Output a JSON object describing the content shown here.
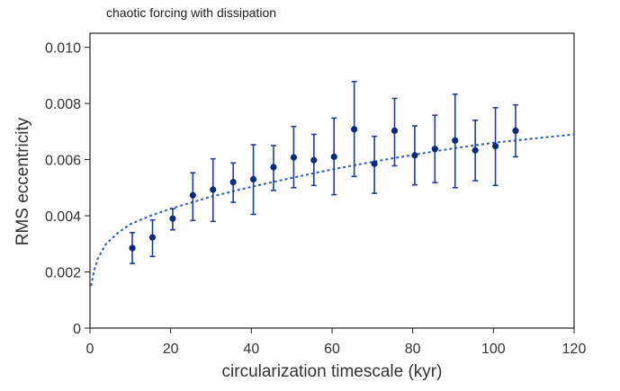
{
  "chart_data": {
    "type": "scatter",
    "title": "chaotic forcing with dissipation",
    "xlabel": "circularization timescale (kyr)",
    "ylabel": "RMS eccentricity",
    "xlim": [
      0,
      120
    ],
    "ylim": [
      0,
      0.0105
    ],
    "x_ticks": [
      "0",
      "20",
      "40",
      "60",
      "80",
      "100",
      "120"
    ],
    "y_ticks": [
      "0",
      "0.002",
      "0.004",
      "0.006",
      "0.008",
      "0.010"
    ],
    "grid": false,
    "legend": "none",
    "series": [
      {
        "kind": "points_with_error_bars",
        "color": "#1f3f94",
        "point_color": "#0b2a7a",
        "points": [
          {
            "x": 10.5,
            "y": 0.00285,
            "err_low": 0.0023,
            "err_high": 0.0034
          },
          {
            "x": 15.5,
            "y": 0.00323,
            "err_low": 0.00255,
            "err_high": 0.00385
          },
          {
            "x": 20.5,
            "y": 0.0039,
            "err_low": 0.0035,
            "err_high": 0.00425
          },
          {
            "x": 25.5,
            "y": 0.00473,
            "err_low": 0.00383,
            "err_high": 0.00553
          },
          {
            "x": 30.5,
            "y": 0.00493,
            "err_low": 0.0038,
            "err_high": 0.00603
          },
          {
            "x": 35.5,
            "y": 0.0052,
            "err_low": 0.00448,
            "err_high": 0.00588
          },
          {
            "x": 40.5,
            "y": 0.0053,
            "err_low": 0.00405,
            "err_high": 0.00653
          },
          {
            "x": 45.5,
            "y": 0.00573,
            "err_low": 0.0049,
            "err_high": 0.0065
          },
          {
            "x": 50.5,
            "y": 0.00608,
            "err_low": 0.005,
            "err_high": 0.00718
          },
          {
            "x": 55.5,
            "y": 0.00598,
            "err_low": 0.00508,
            "err_high": 0.0069
          },
          {
            "x": 60.5,
            "y": 0.0061,
            "err_low": 0.00475,
            "err_high": 0.00748
          },
          {
            "x": 65.5,
            "y": 0.00708,
            "err_low": 0.0054,
            "err_high": 0.00878
          },
          {
            "x": 70.5,
            "y": 0.00585,
            "err_low": 0.0048,
            "err_high": 0.00683
          },
          {
            "x": 75.5,
            "y": 0.00703,
            "err_low": 0.00578,
            "err_high": 0.00818
          },
          {
            "x": 80.5,
            "y": 0.00615,
            "err_low": 0.0051,
            "err_high": 0.0072
          },
          {
            "x": 85.5,
            "y": 0.00638,
            "err_low": 0.00518,
            "err_high": 0.00758
          },
          {
            "x": 90.5,
            "y": 0.00668,
            "err_low": 0.005,
            "err_high": 0.00833
          },
          {
            "x": 95.5,
            "y": 0.00633,
            "err_low": 0.00525,
            "err_high": 0.0074
          },
          {
            "x": 100.5,
            "y": 0.00648,
            "err_low": 0.00508,
            "err_high": 0.00785
          },
          {
            "x": 105.5,
            "y": 0.00703,
            "err_low": 0.0061,
            "err_high": 0.00795
          }
        ]
      },
      {
        "kind": "dashed_fit_curve",
        "color": "#2d5bb5",
        "x": [
          0.3,
          1,
          2,
          4,
          7,
          10,
          15,
          20,
          30,
          40,
          50,
          60,
          70,
          80,
          90,
          100,
          110,
          120
        ],
        "y": [
          0.0015,
          0.00205,
          0.0025,
          0.003,
          0.0034,
          0.0037,
          0.004,
          0.00425,
          0.00468,
          0.00503,
          0.00535,
          0.00565,
          0.00592,
          0.00617,
          0.0064,
          0.0066,
          0.00675,
          0.0069
        ]
      }
    ]
  }
}
